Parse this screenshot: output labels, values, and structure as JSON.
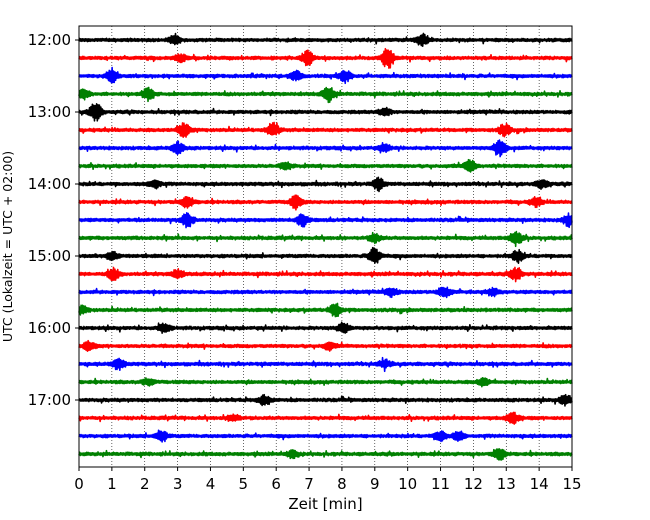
{
  "chart_data": {
    "type": "line",
    "title": "",
    "xlabel": "Zeit  [min]",
    "ylabel": "UTC (Lokalzeit = UTC + 02:00)",
    "xlim": [
      0,
      15
    ],
    "x_ticks": [
      "0",
      "1",
      "2",
      "3",
      "4",
      "5",
      "6",
      "7",
      "8",
      "9",
      "10",
      "11",
      "12",
      "13",
      "14",
      "15"
    ],
    "y_ticks": [
      "12:00",
      "13:00",
      "14:00",
      "15:00",
      "16:00",
      "17:00"
    ],
    "trace_interval_min": 15,
    "trace_start": "12:00",
    "trace_count": 24,
    "trace_colors": [
      "#000000",
      "#ff0000",
      "#0000ff",
      "#008000"
    ],
    "grid": "vertical dotted lines at each minute",
    "events": [
      {
        "trace": 0,
        "x": 10.45,
        "amp": 0.85
      },
      {
        "trace": 0,
        "x": 2.9,
        "amp": 0.6
      },
      {
        "trace": 1,
        "x": 9.4,
        "amp": 1.4
      },
      {
        "trace": 1,
        "x": 6.95,
        "amp": 1.0
      },
      {
        "trace": 1,
        "x": 3.1,
        "amp": 0.5
      },
      {
        "trace": 2,
        "x": 1.0,
        "amp": 0.85
      },
      {
        "trace": 2,
        "x": 8.1,
        "amp": 0.8
      },
      {
        "trace": 2,
        "x": 6.6,
        "amp": 0.6
      },
      {
        "trace": 3,
        "x": 7.6,
        "amp": 1.0
      },
      {
        "trace": 3,
        "x": 2.1,
        "amp": 0.8
      },
      {
        "trace": 3,
        "x": 0.15,
        "amp": 0.6
      },
      {
        "trace": 4,
        "x": 0.5,
        "amp": 1.3
      },
      {
        "trace": 4,
        "x": 9.3,
        "amp": 0.6
      },
      {
        "trace": 5,
        "x": 3.2,
        "amp": 1.1
      },
      {
        "trace": 5,
        "x": 5.9,
        "amp": 1.0
      },
      {
        "trace": 5,
        "x": 12.95,
        "amp": 0.8
      },
      {
        "trace": 6,
        "x": 12.8,
        "amp": 1.2
      },
      {
        "trace": 6,
        "x": 3.0,
        "amp": 0.8
      },
      {
        "trace": 6,
        "x": 9.3,
        "amp": 0.5
      },
      {
        "trace": 7,
        "x": 11.9,
        "amp": 0.8
      },
      {
        "trace": 7,
        "x": 6.3,
        "amp": 0.5
      },
      {
        "trace": 8,
        "x": 2.3,
        "amp": 0.6
      },
      {
        "trace": 8,
        "x": 9.1,
        "amp": 0.8
      },
      {
        "trace": 8,
        "x": 14.1,
        "amp": 0.6
      },
      {
        "trace": 9,
        "x": 3.3,
        "amp": 0.8
      },
      {
        "trace": 9,
        "x": 6.6,
        "amp": 0.9
      },
      {
        "trace": 9,
        "x": 13.9,
        "amp": 0.6
      },
      {
        "trace": 10,
        "x": 3.3,
        "amp": 1.0
      },
      {
        "trace": 10,
        "x": 6.8,
        "amp": 0.9
      },
      {
        "trace": 10,
        "x": 14.9,
        "amp": 0.8
      },
      {
        "trace": 11,
        "x": 9.0,
        "amp": 0.6
      },
      {
        "trace": 11,
        "x": 13.3,
        "amp": 1.0
      },
      {
        "trace": 12,
        "x": 9.0,
        "amp": 1.2
      },
      {
        "trace": 12,
        "x": 1.0,
        "amp": 0.6
      },
      {
        "trace": 12,
        "x": 13.35,
        "amp": 0.8
      },
      {
        "trace": 13,
        "x": 1.05,
        "amp": 0.8
      },
      {
        "trace": 13,
        "x": 3.0,
        "amp": 0.6
      },
      {
        "trace": 13,
        "x": 13.3,
        "amp": 0.9
      },
      {
        "trace": 14,
        "x": 9.5,
        "amp": 0.6
      },
      {
        "trace": 14,
        "x": 11.1,
        "amp": 0.8
      },
      {
        "trace": 14,
        "x": 12.6,
        "amp": 0.5
      },
      {
        "trace": 15,
        "x": 7.8,
        "amp": 0.9
      },
      {
        "trace": 15,
        "x": 0.1,
        "amp": 0.5
      },
      {
        "trace": 16,
        "x": 2.6,
        "amp": 0.6
      },
      {
        "trace": 16,
        "x": 8.05,
        "amp": 0.7
      },
      {
        "trace": 17,
        "x": 0.3,
        "amp": 0.6
      },
      {
        "trace": 17,
        "x": 7.6,
        "amp": 0.5
      },
      {
        "trace": 18,
        "x": 1.2,
        "amp": 0.8
      },
      {
        "trace": 18,
        "x": 9.3,
        "amp": 0.6
      },
      {
        "trace": 19,
        "x": 2.1,
        "amp": 0.5
      },
      {
        "trace": 19,
        "x": 12.3,
        "amp": 0.5
      },
      {
        "trace": 20,
        "x": 5.65,
        "amp": 0.7
      },
      {
        "trace": 20,
        "x": 14.8,
        "amp": 0.7
      },
      {
        "trace": 21,
        "x": 13.2,
        "amp": 0.8
      },
      {
        "trace": 21,
        "x": 4.7,
        "amp": 0.5
      },
      {
        "trace": 22,
        "x": 2.5,
        "amp": 0.8
      },
      {
        "trace": 22,
        "x": 11.0,
        "amp": 0.7
      },
      {
        "trace": 22,
        "x": 11.55,
        "amp": 0.6
      },
      {
        "trace": 23,
        "x": 12.8,
        "amp": 0.8
      },
      {
        "trace": 23,
        "x": 6.5,
        "amp": 0.5
      }
    ]
  }
}
